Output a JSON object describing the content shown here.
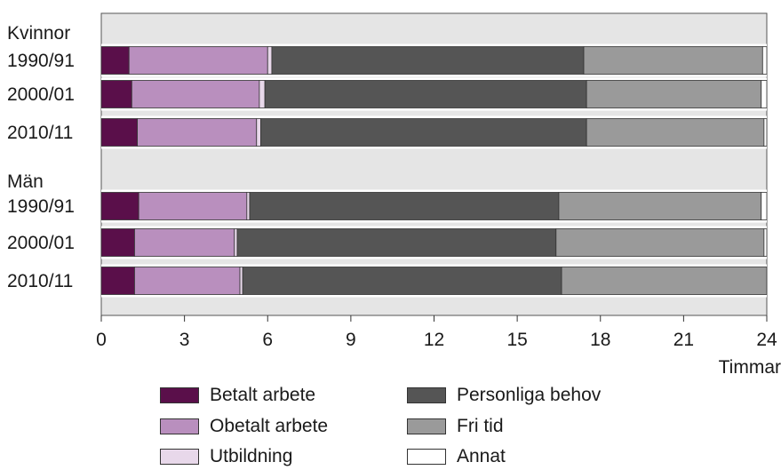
{
  "chart_data": {
    "type": "bar",
    "orientation": "horizontal",
    "stacked": true,
    "xlabel": "Timmar",
    "xlim": [
      0,
      24
    ],
    "x_ticks": [
      "0",
      "3",
      "6",
      "9",
      "12",
      "15",
      "18",
      "21",
      "24"
    ],
    "groups": [
      {
        "label": "Kvinnor",
        "categories": [
          "1990/91",
          "2000/01",
          "2010/11"
        ]
      },
      {
        "label": "Män",
        "categories": [
          "1990/91",
          "2000/01",
          "2010/11"
        ]
      }
    ],
    "series": [
      {
        "name": "Betalt arbete",
        "color": "#5a0f4a",
        "values": [
          1.0,
          1.1,
          1.3,
          1.35,
          1.2,
          1.2
        ]
      },
      {
        "name": "Obetalt arbete",
        "color": "#b98fbe",
        "values": [
          5.0,
          4.6,
          4.3,
          3.9,
          3.6,
          3.8
        ]
      },
      {
        "name": "Utbildning",
        "color": "#e8d8ea",
        "values": [
          0.15,
          0.2,
          0.15,
          0.1,
          0.1,
          0.1
        ]
      },
      {
        "name": "Personliga behov",
        "color": "#555555",
        "values": [
          11.25,
          11.6,
          11.75,
          11.15,
          11.5,
          11.5
        ]
      },
      {
        "name": "Fri tid",
        "color": "#9a9a9a",
        "values": [
          6.45,
          6.3,
          6.4,
          7.3,
          7.5,
          7.4
        ]
      },
      {
        "name": "Annat",
        "color": "#ffffff",
        "values": [
          0.15,
          0.2,
          0.1,
          0.2,
          0.1,
          0.0
        ]
      }
    ],
    "grid": false,
    "legend_position": "bottom"
  }
}
